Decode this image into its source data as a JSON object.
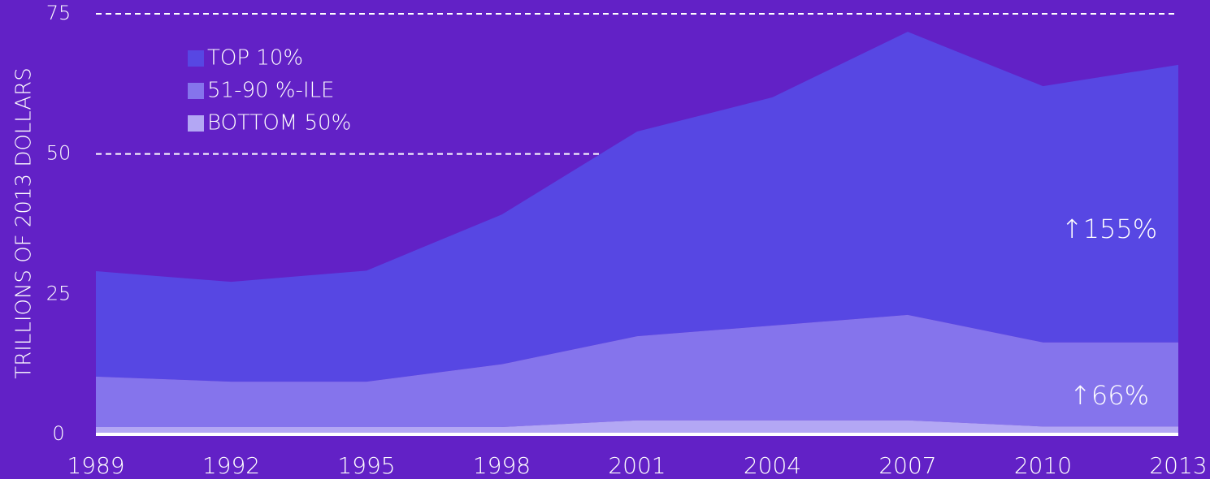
{
  "chart_data": {
    "type": "stacked_area",
    "y_label": "TRILLIONS OF 2013 DOLLARS",
    "x": [
      1989,
      1992,
      1995,
      1998,
      2001,
      2004,
      2007,
      2010,
      2013
    ],
    "xlim": [
      1989,
      2013
    ],
    "xticks": [
      1989,
      1992,
      1995,
      1998,
      2001,
      2004,
      2007,
      2010,
      2013
    ],
    "ylim": [
      0,
      75
    ],
    "yticks": [
      0,
      25,
      50,
      75
    ],
    "grid": true,
    "legend": "upper left",
    "series": [
      {
        "name": "TOP 10%",
        "color": "#5747e3",
        "values": [
          18.8,
          17.8,
          19.8,
          26.7,
          36.5,
          40.7,
          50.5,
          45.7,
          49.5
        ]
      },
      {
        "name": "51-90 %-ILE",
        "color": "#8574ec",
        "values": [
          9.0,
          8.1,
          8.1,
          11.2,
          15.0,
          16.9,
          18.8,
          15.0,
          15.0
        ]
      },
      {
        "name": "BOTTOM 50%",
        "color": "#b3a7f4",
        "values": [
          1.3,
          1.3,
          1.3,
          1.3,
          2.5,
          2.5,
          2.5,
          1.4,
          1.4
        ]
      }
    ],
    "annotations": [
      "↑155%",
      "↑66%"
    ]
  }
}
